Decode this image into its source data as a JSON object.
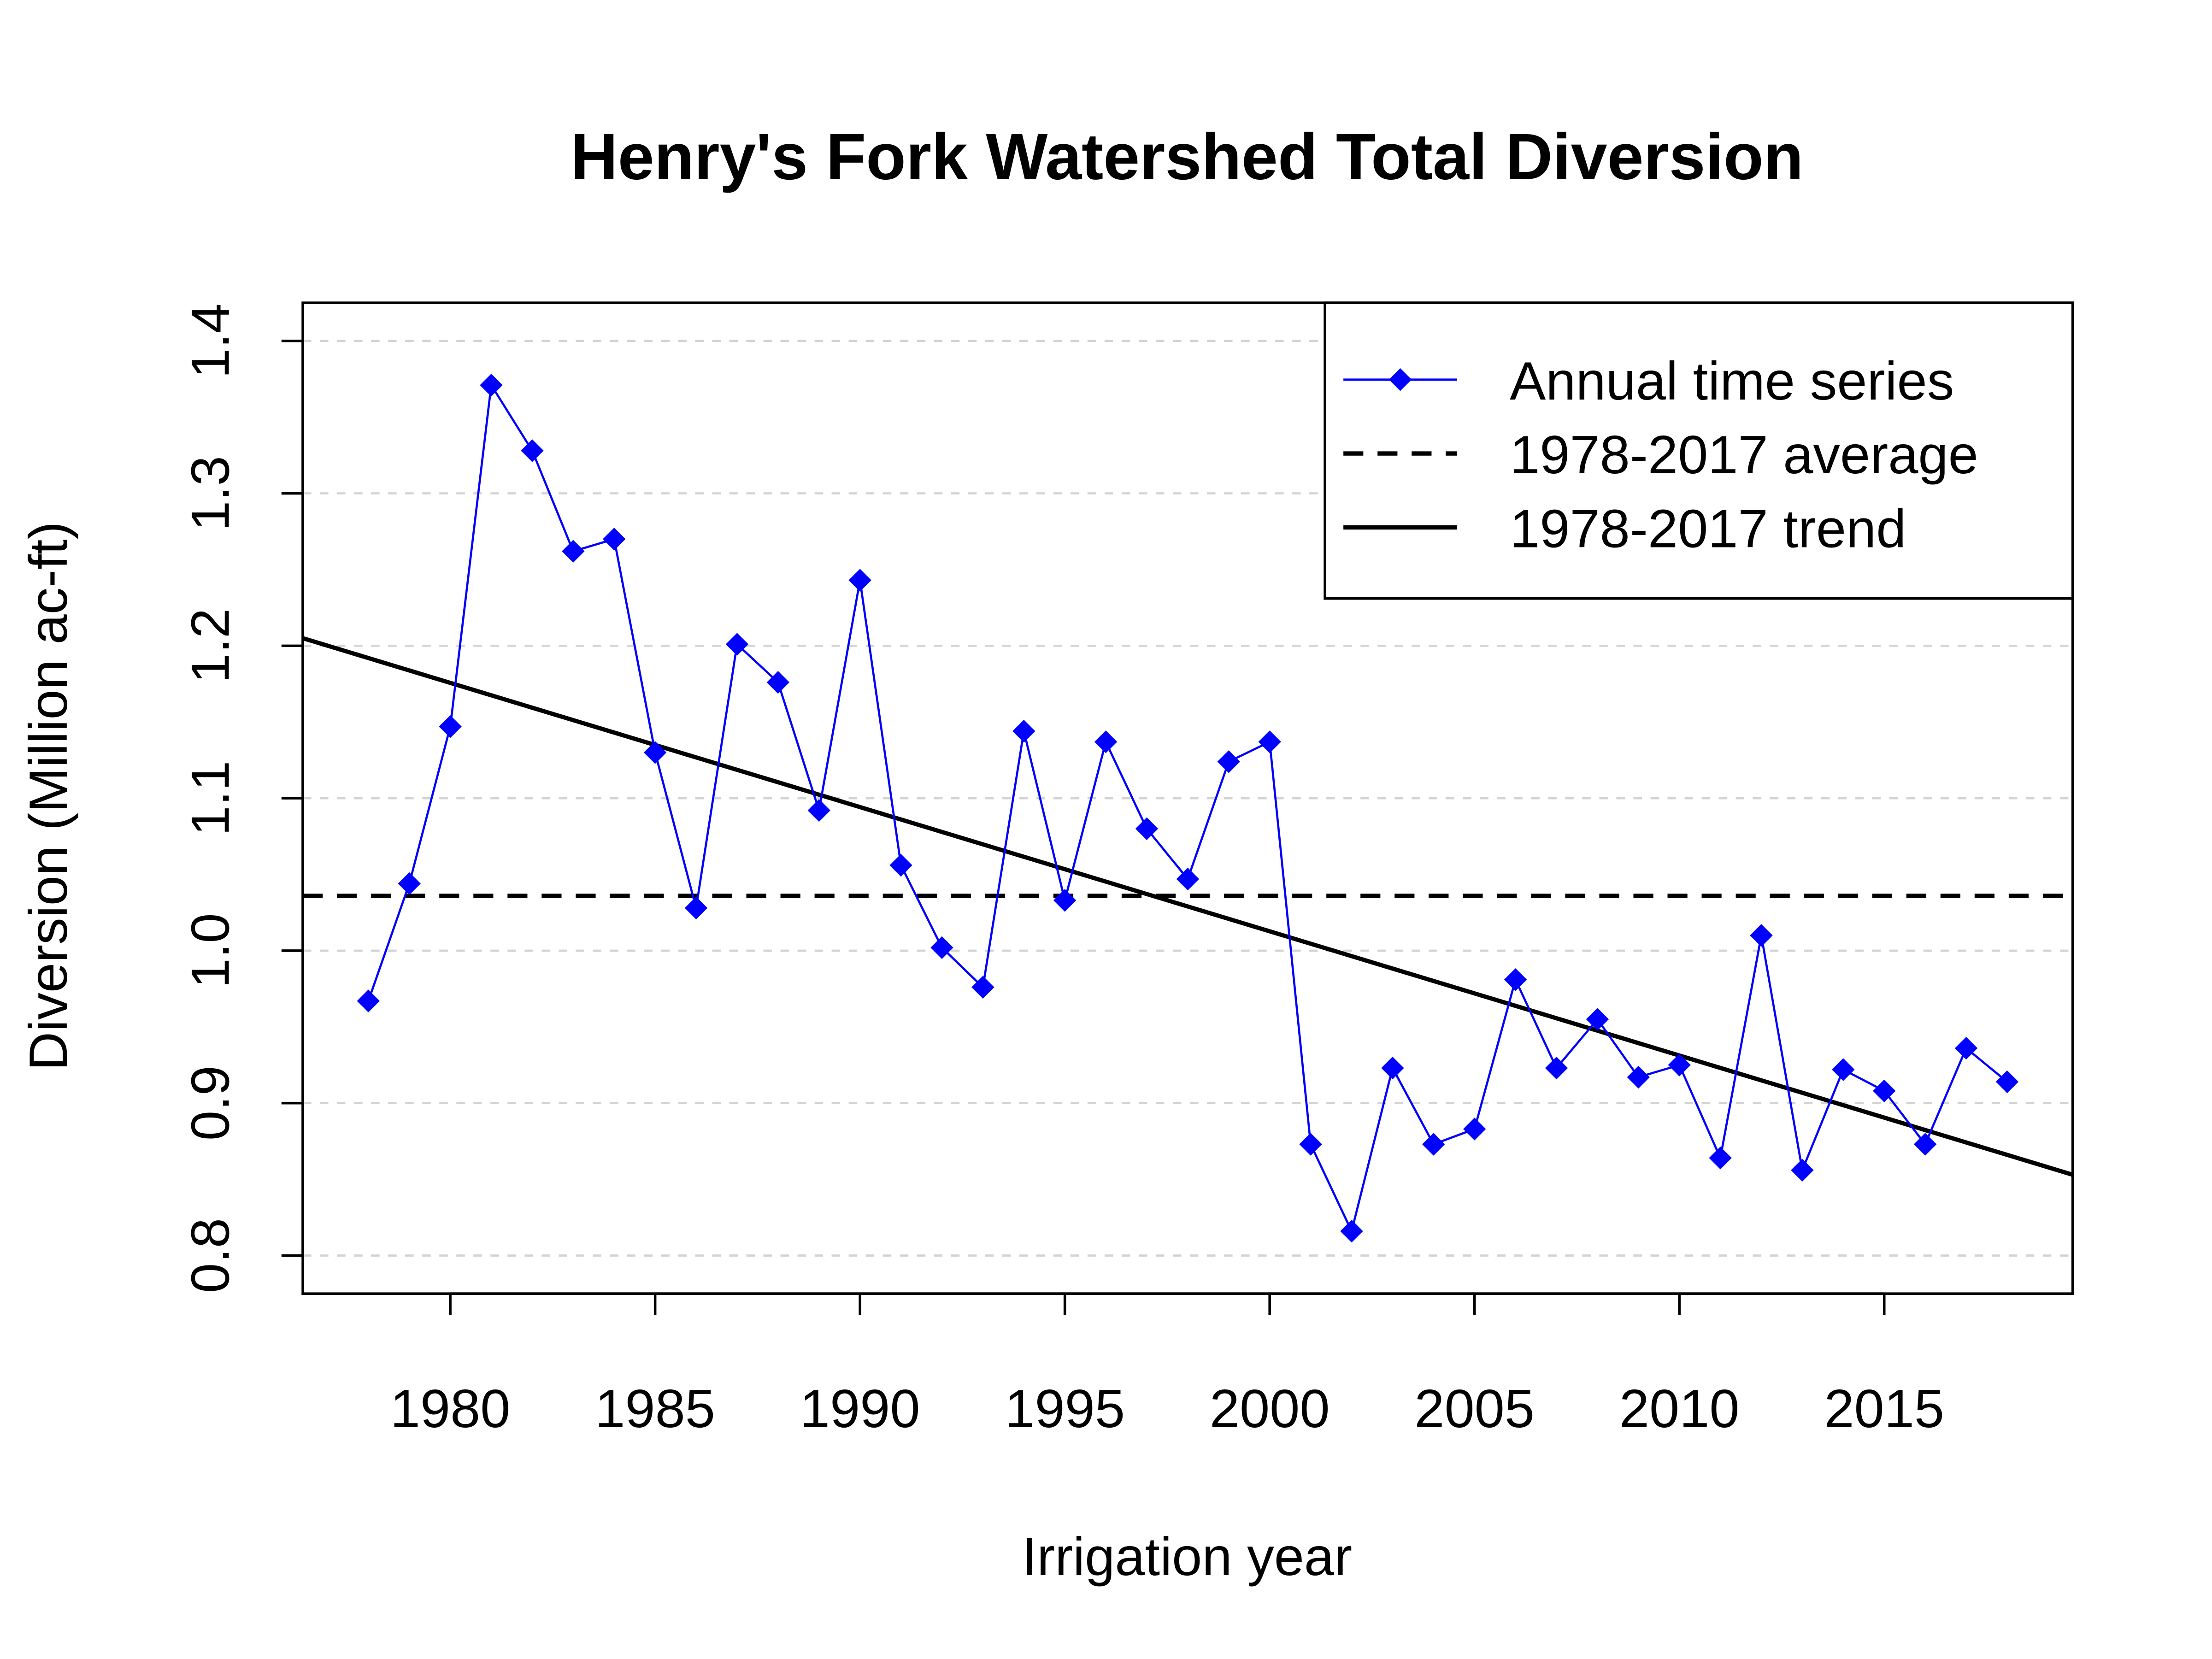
{
  "chart_data": {
    "type": "line",
    "title": "Henry's Fork Watershed Total Diversion",
    "xlabel": "Irrigation year",
    "ylabel": "Diversion (Million ac-ft)",
    "xlim": [
      1976.4,
      2019.6
    ],
    "ylim": [
      0.775,
      1.425
    ],
    "x_ticks": [
      1980,
      1985,
      1990,
      1995,
      2000,
      2005,
      2010,
      2015
    ],
    "x_tick_labels": [
      "1980",
      "1985",
      "1990",
      "1995",
      "2000",
      "2005",
      "2010",
      "2015"
    ],
    "y_ticks": [
      0.8,
      0.9,
      1.0,
      1.1,
      1.2,
      1.3,
      1.4
    ],
    "y_tick_labels": [
      "0.8",
      "0.9",
      "1.0",
      "1.1",
      "1.2",
      "1.3",
      "1.4"
    ],
    "grid": "horizontal dashed light gray",
    "legend_position": "top-right",
    "series": [
      {
        "name": "Annual time series",
        "color": "#0000ff",
        "marker": "diamond",
        "x": [
          1978,
          1979,
          1980,
          1981,
          1982,
          1983,
          1984,
          1985,
          1986,
          1987,
          1988,
          1989,
          1990,
          1991,
          1992,
          1993,
          1994,
          1995,
          1996,
          1997,
          1998,
          1999,
          2000,
          2001,
          2002,
          2003,
          2004,
          2005,
          2006,
          2007,
          2008,
          2009,
          2010,
          2011,
          2012,
          2013,
          2014,
          2015,
          2016,
          2017,
          2018
        ],
        "y": [
          0.967,
          1.044,
          1.147,
          1.371,
          1.328,
          1.262,
          1.27,
          1.13,
          1.028,
          1.201,
          1.176,
          1.092,
          1.243,
          1.056,
          1.002,
          0.976,
          1.144,
          1.033,
          1.137,
          1.08,
          1.047,
          1.124,
          1.137,
          0.873,
          0.816,
          0.923,
          0.873,
          0.883,
          0.981,
          0.923,
          0.955,
          0.917,
          0.925,
          0.864,
          1.01,
          0.856,
          0.922,
          0.908,
          0.873,
          0.936,
          0.914
        ]
      },
      {
        "name": "1978-2017 average",
        "color": "#000000",
        "style": "dashed",
        "value": 1.036
      },
      {
        "name": "1978-2017 trend",
        "color": "#000000",
        "style": "solid",
        "x": [
          1976.4,
          2019.6
        ],
        "y": [
          1.205,
          0.853
        ]
      }
    ]
  }
}
